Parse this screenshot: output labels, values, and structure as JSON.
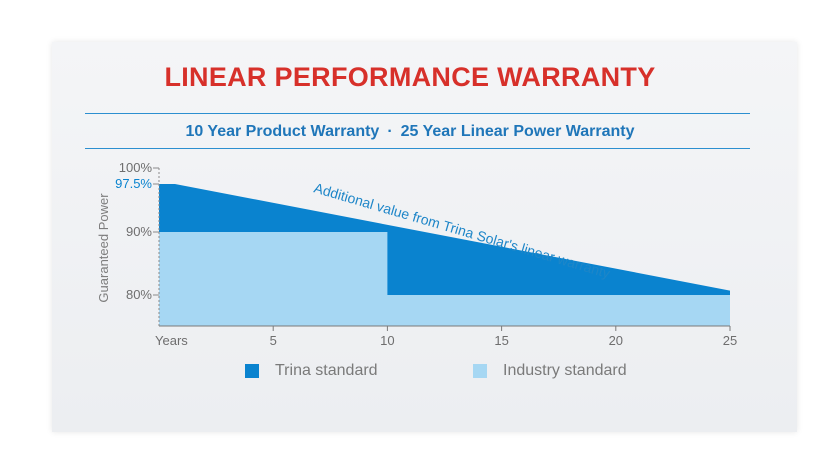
{
  "title": "LINEAR PERFORMANCE WARRANTY",
  "subtitle": {
    "left": "10 Year Product Warranty",
    "separator": "·",
    "right": "25 Year Linear Power Warranty"
  },
  "colors": {
    "title": "#d7302a",
    "subtitle": "#1f76b9",
    "trina": "#0a83cf",
    "industry": "#a6d7f3"
  },
  "legend": [
    {
      "label": "Trina standard",
      "color": "#0a83cf"
    },
    {
      "label": "Industry standard",
      "color": "#a6d7f3"
    }
  ],
  "chart_data": {
    "type": "area",
    "ylabel": "Guaranteed Power",
    "xlabel": "",
    "xlim": [
      0,
      25
    ],
    "ylim": [
      77,
      100
    ],
    "x_ticks": [
      {
        "value": 0,
        "label": "Years"
      },
      {
        "value": 5,
        "label": "5"
      },
      {
        "value": 10,
        "label": "10"
      },
      {
        "value": 15,
        "label": "15"
      },
      {
        "value": 20,
        "label": "20"
      },
      {
        "value": 25,
        "label": "25"
      }
    ],
    "y_ticks": [
      {
        "value": 100,
        "label": "100%",
        "highlight": false
      },
      {
        "value": 97.5,
        "label": "97.5%",
        "highlight": true
      },
      {
        "value": 90,
        "label": "90%",
        "highlight": false
      },
      {
        "value": 80,
        "label": "80%",
        "highlight": false
      }
    ],
    "series": [
      {
        "name": "Trina standard",
        "x": [
          0,
          0.7,
          25
        ],
        "y": [
          97.5,
          97.5,
          80.7
        ]
      },
      {
        "name": "Industry standard",
        "x": [
          0,
          10,
          10,
          25
        ],
        "y": [
          90,
          90,
          80,
          80
        ]
      }
    ],
    "annotations": [
      {
        "text": "Additional value from Trina Solar's linear warranty"
      }
    ]
  }
}
